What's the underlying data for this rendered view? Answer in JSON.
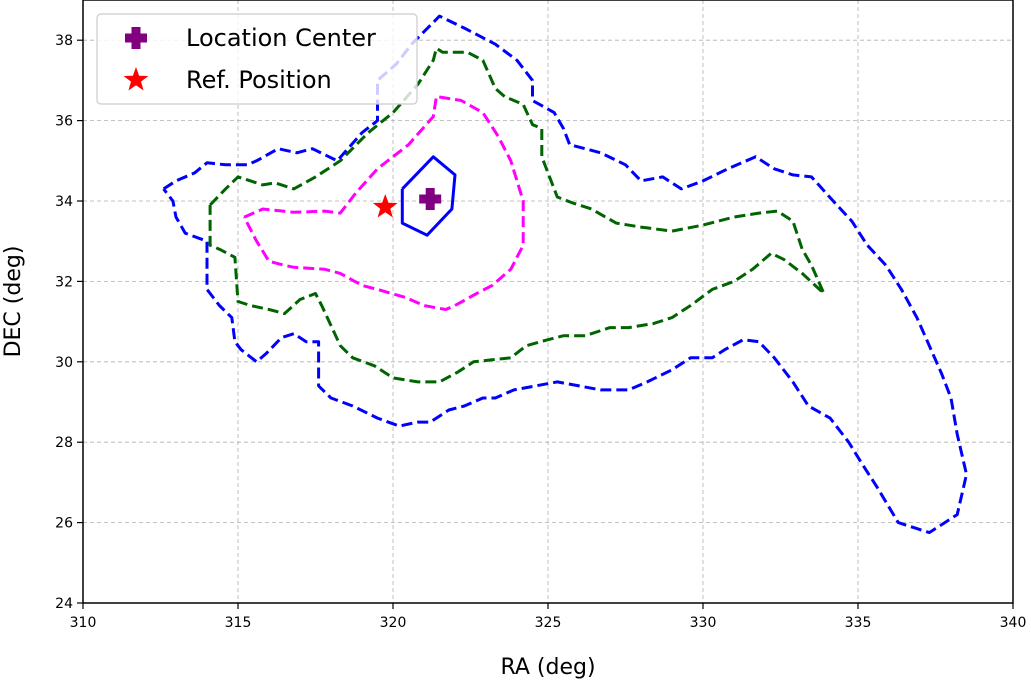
{
  "chart_data": {
    "type": "line",
    "title": "",
    "xlabel": "RA (deg)",
    "ylabel": "DEC (deg)",
    "xlim": [
      310,
      340
    ],
    "ylim": [
      24,
      39
    ],
    "xticks": [
      310,
      315,
      320,
      325,
      330,
      335,
      340
    ],
    "yticks": [
      24,
      26,
      28,
      30,
      32,
      34,
      36,
      38
    ],
    "grid": true,
    "legend": {
      "placement": "upper-left",
      "entries": [
        {
          "label": "Location Center",
          "marker": "plus",
          "color": "#800080"
        },
        {
          "label": "Ref. Position",
          "marker": "star",
          "color": "#ff0000"
        }
      ]
    },
    "points": [
      {
        "label": "Location Center",
        "x": 321.2,
        "y": 34.05,
        "color": "#800080",
        "marker": "plus"
      },
      {
        "label": "Ref. Position",
        "x": 319.75,
        "y": 33.85,
        "color": "#ff0000",
        "marker": "star"
      }
    ],
    "contours": [
      {
        "color": "#0000ff",
        "dashed": false,
        "points": [
          [
            320.3,
            34.3
          ],
          [
            321.3,
            35.1
          ],
          [
            322.0,
            34.65
          ],
          [
            321.9,
            33.8
          ],
          [
            321.1,
            33.15
          ],
          [
            320.3,
            33.45
          ],
          [
            320.3,
            34.3
          ]
        ]
      },
      {
        "color": "#ff00ff",
        "dashed": true,
        "points": [
          [
            315.2,
            33.6
          ],
          [
            315.8,
            33.8
          ],
          [
            316.8,
            33.72
          ],
          [
            317.8,
            33.75
          ],
          [
            318.3,
            33.7
          ],
          [
            318.8,
            34.2
          ],
          [
            319.5,
            34.8
          ],
          [
            320.5,
            35.4
          ],
          [
            321.3,
            36.1
          ],
          [
            321.4,
            36.6
          ],
          [
            322.2,
            36.5
          ],
          [
            322.9,
            36.2
          ],
          [
            323.4,
            35.6
          ],
          [
            323.8,
            35.0
          ],
          [
            324.2,
            34.0
          ],
          [
            324.2,
            32.9
          ],
          [
            323.8,
            32.3
          ],
          [
            323.2,
            31.9
          ],
          [
            322.7,
            31.7
          ],
          [
            322.0,
            31.4
          ],
          [
            321.7,
            31.3
          ],
          [
            321.0,
            31.4
          ],
          [
            320.4,
            31.6
          ],
          [
            319.5,
            31.8
          ],
          [
            319.0,
            31.9
          ],
          [
            318.3,
            32.2
          ],
          [
            317.8,
            32.3
          ],
          [
            316.8,
            32.35
          ],
          [
            316.5,
            32.4
          ],
          [
            316.0,
            32.5
          ],
          [
            315.6,
            33.0
          ],
          [
            315.2,
            33.6
          ]
        ]
      },
      {
        "color": "#006400",
        "dashed": true,
        "points": [
          [
            314.1,
            33.9
          ],
          [
            314.6,
            34.3
          ],
          [
            315.0,
            34.6
          ],
          [
            315.8,
            34.4
          ],
          [
            316.2,
            34.45
          ],
          [
            316.8,
            34.3
          ],
          [
            317.5,
            34.6
          ],
          [
            318.3,
            35.0
          ],
          [
            319.2,
            35.7
          ],
          [
            320.0,
            36.2
          ],
          [
            320.8,
            36.9
          ],
          [
            321.3,
            37.5
          ],
          [
            321.4,
            37.8
          ],
          [
            321.6,
            37.7
          ],
          [
            322.4,
            37.7
          ],
          [
            322.9,
            37.5
          ],
          [
            323.3,
            36.8
          ],
          [
            323.6,
            36.6
          ],
          [
            324.2,
            36.4
          ],
          [
            324.5,
            35.9
          ],
          [
            324.8,
            35.8
          ],
          [
            324.8,
            35.1
          ],
          [
            325.1,
            34.5
          ],
          [
            325.3,
            34.1
          ],
          [
            325.8,
            33.95
          ],
          [
            326.4,
            33.8
          ],
          [
            327.2,
            33.45
          ],
          [
            328.0,
            33.35
          ],
          [
            329.0,
            33.25
          ],
          [
            330.0,
            33.4
          ],
          [
            331.0,
            33.6
          ],
          [
            331.8,
            33.7
          ],
          [
            332.4,
            33.75
          ],
          [
            332.9,
            33.5
          ],
          [
            333.2,
            32.8
          ],
          [
            333.5,
            32.4
          ],
          [
            333.9,
            31.7
          ],
          [
            333.2,
            32.2
          ],
          [
            332.6,
            32.55
          ],
          [
            332.2,
            32.7
          ],
          [
            331.6,
            32.3
          ],
          [
            331.0,
            32.0
          ],
          [
            330.3,
            31.8
          ],
          [
            329.6,
            31.4
          ],
          [
            329.0,
            31.1
          ],
          [
            328.4,
            30.95
          ],
          [
            327.6,
            30.85
          ],
          [
            327.0,
            30.85
          ],
          [
            326.2,
            30.65
          ],
          [
            325.5,
            30.65
          ],
          [
            325.0,
            30.55
          ],
          [
            324.3,
            30.4
          ],
          [
            323.8,
            30.1
          ],
          [
            323.2,
            30.05
          ],
          [
            322.6,
            30.0
          ],
          [
            322.1,
            29.75
          ],
          [
            321.5,
            29.5
          ],
          [
            320.8,
            29.5
          ],
          [
            320.0,
            29.6
          ],
          [
            319.4,
            29.9
          ],
          [
            318.7,
            30.1
          ],
          [
            318.3,
            30.4
          ],
          [
            318.0,
            30.9
          ],
          [
            317.7,
            31.4
          ],
          [
            317.5,
            31.7
          ],
          [
            317.0,
            31.55
          ],
          [
            316.5,
            31.2
          ],
          [
            316.0,
            31.3
          ],
          [
            315.4,
            31.4
          ],
          [
            315.0,
            31.5
          ],
          [
            314.9,
            32.6
          ],
          [
            314.4,
            32.8
          ],
          [
            314.1,
            32.9
          ],
          [
            314.1,
            33.9
          ]
        ]
      },
      {
        "color": "#0000ff",
        "dashed": true,
        "points": [
          [
            312.6,
            34.3
          ],
          [
            313.0,
            34.5
          ],
          [
            313.6,
            34.7
          ],
          [
            314.0,
            34.95
          ],
          [
            314.6,
            34.9
          ],
          [
            315.3,
            34.9
          ],
          [
            315.6,
            35.0
          ],
          [
            316.3,
            35.3
          ],
          [
            316.9,
            35.2
          ],
          [
            317.4,
            35.3
          ],
          [
            318.2,
            35.0
          ],
          [
            319.0,
            35.7
          ],
          [
            319.5,
            36.0
          ],
          [
            319.5,
            37.0
          ],
          [
            320.1,
            37.4
          ],
          [
            320.6,
            37.9
          ],
          [
            321.5,
            38.6
          ],
          [
            322.3,
            38.3
          ],
          [
            323.3,
            37.9
          ],
          [
            324.0,
            37.5
          ],
          [
            324.5,
            37.0
          ],
          [
            324.5,
            36.5
          ],
          [
            325.2,
            36.2
          ],
          [
            325.5,
            35.8
          ],
          [
            325.7,
            35.4
          ],
          [
            326.2,
            35.3
          ],
          [
            326.7,
            35.2
          ],
          [
            327.5,
            34.9
          ],
          [
            328.0,
            34.5
          ],
          [
            328.7,
            34.6
          ],
          [
            329.3,
            34.3
          ],
          [
            330.0,
            34.5
          ],
          [
            330.8,
            34.8
          ],
          [
            331.7,
            35.1
          ],
          [
            332.3,
            34.8
          ],
          [
            332.9,
            34.65
          ],
          [
            333.5,
            34.6
          ],
          [
            334.2,
            34.0
          ],
          [
            334.8,
            33.5
          ],
          [
            335.3,
            32.9
          ],
          [
            335.9,
            32.4
          ],
          [
            336.4,
            31.8
          ],
          [
            336.9,
            31.1
          ],
          [
            337.3,
            30.4
          ],
          [
            337.7,
            29.7
          ],
          [
            338.0,
            29.1
          ],
          [
            338.2,
            28.2
          ],
          [
            338.5,
            27.2
          ],
          [
            338.2,
            26.2
          ],
          [
            337.8,
            26.0
          ],
          [
            337.3,
            25.75
          ],
          [
            336.9,
            25.85
          ],
          [
            336.3,
            26.0
          ],
          [
            335.6,
            26.9
          ],
          [
            335.1,
            27.5
          ],
          [
            334.7,
            28.0
          ],
          [
            334.1,
            28.6
          ],
          [
            333.4,
            28.9
          ],
          [
            332.9,
            29.5
          ],
          [
            332.3,
            30.1
          ],
          [
            331.8,
            30.5
          ],
          [
            331.3,
            30.55
          ],
          [
            330.7,
            30.3
          ],
          [
            330.3,
            30.1
          ],
          [
            329.6,
            30.1
          ],
          [
            329.0,
            29.8
          ],
          [
            328.2,
            29.5
          ],
          [
            327.6,
            29.3
          ],
          [
            326.7,
            29.3
          ],
          [
            326.0,
            29.4
          ],
          [
            325.3,
            29.5
          ],
          [
            324.6,
            29.4
          ],
          [
            323.9,
            29.3
          ],
          [
            323.3,
            29.1
          ],
          [
            322.9,
            29.1
          ],
          [
            322.3,
            28.9
          ],
          [
            321.8,
            28.8
          ],
          [
            321.2,
            28.5
          ],
          [
            320.8,
            28.5
          ],
          [
            320.2,
            28.4
          ],
          [
            319.5,
            28.6
          ],
          [
            318.7,
            28.9
          ],
          [
            318.0,
            29.1
          ],
          [
            317.6,
            29.4
          ],
          [
            317.6,
            30.5
          ],
          [
            317.2,
            30.5
          ],
          [
            316.8,
            30.7
          ],
          [
            316.4,
            30.6
          ],
          [
            315.9,
            30.2
          ],
          [
            315.6,
            30.0
          ],
          [
            315.1,
            30.3
          ],
          [
            314.9,
            30.5
          ],
          [
            314.8,
            31.1
          ],
          [
            314.4,
            31.4
          ],
          [
            314.0,
            31.8
          ],
          [
            314.0,
            33.0
          ],
          [
            313.3,
            33.2
          ],
          [
            313.0,
            33.6
          ],
          [
            312.9,
            34.0
          ],
          [
            312.6,
            34.3
          ]
        ]
      }
    ]
  }
}
